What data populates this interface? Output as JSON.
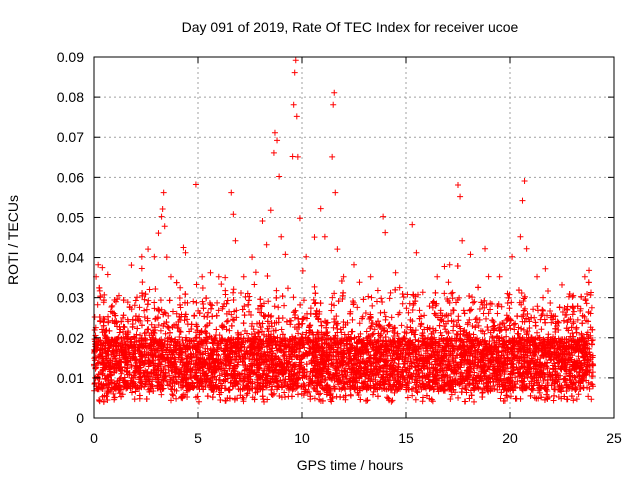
{
  "chart_data": {
    "type": "scatter",
    "title": "Day 091 of 2019, Rate Of TEC Index for receiver ucoe",
    "xlabel": "GPS time / hours",
    "ylabel": "ROTI / TECUs",
    "xlim": [
      0,
      25
    ],
    "ylim": [
      0,
      0.09
    ],
    "x_ticks": [
      0,
      5,
      10,
      15,
      20,
      25
    ],
    "y_ticks": [
      0,
      0.01,
      0.02,
      0.03,
      0.04,
      0.05,
      0.06,
      0.07,
      0.08,
      0.09
    ],
    "x_tick_labels": [
      "0",
      "5",
      "10",
      "15",
      "20",
      "25"
    ],
    "y_tick_labels": [
      "0",
      "0.01",
      "0.02",
      "0.03",
      "0.04",
      "0.05",
      "0.06",
      "0.07",
      "0.08",
      "0.09"
    ],
    "grid": true,
    "marker": "+",
    "marker_color": "#ff0000",
    "series": [
      {
        "points": [
          [
            0.1,
            0.0352
          ],
          [
            0.2,
            0.0382
          ],
          [
            0.3,
            0.0301
          ],
          [
            0.4,
            0.0375
          ],
          [
            1.2,
            0.0305
          ],
          [
            1.8,
            0.0381
          ],
          [
            2.3,
            0.0402
          ],
          [
            2.6,
            0.0421
          ],
          [
            2.9,
            0.0402
          ],
          [
            3.1,
            0.0461
          ],
          [
            3.25,
            0.0502
          ],
          [
            3.3,
            0.0521
          ],
          [
            3.35,
            0.0562
          ],
          [
            3.4,
            0.0478
          ],
          [
            3.5,
            0.0401
          ],
          [
            3.7,
            0.0352
          ],
          [
            4.3,
            0.0425
          ],
          [
            4.4,
            0.0412
          ],
          [
            4.9,
            0.0582
          ],
          [
            5.2,
            0.0352
          ],
          [
            5.6,
            0.0362
          ],
          [
            6.0,
            0.0352
          ],
          [
            6.6,
            0.0562
          ],
          [
            6.7,
            0.0508
          ],
          [
            6.8,
            0.0442
          ],
          [
            7.2,
            0.0352
          ],
          [
            7.6,
            0.0401
          ],
          [
            8.1,
            0.0491
          ],
          [
            8.3,
            0.0432
          ],
          [
            8.5,
            0.0518
          ],
          [
            8.65,
            0.0661
          ],
          [
            8.7,
            0.0711
          ],
          [
            8.8,
            0.0692
          ],
          [
            8.9,
            0.0602
          ],
          [
            9.0,
            0.0452
          ],
          [
            9.2,
            0.0408
          ],
          [
            9.55,
            0.0652
          ],
          [
            9.6,
            0.0781
          ],
          [
            9.65,
            0.0861
          ],
          [
            9.7,
            0.0892
          ],
          [
            9.75,
            0.0752
          ],
          [
            9.8,
            0.0651
          ],
          [
            9.9,
            0.0498
          ],
          [
            10.2,
            0.0402
          ],
          [
            10.6,
            0.0451
          ],
          [
            10.9,
            0.0522
          ],
          [
            11.1,
            0.0452
          ],
          [
            11.45,
            0.0651
          ],
          [
            11.5,
            0.0781
          ],
          [
            11.55,
            0.0811
          ],
          [
            11.6,
            0.0562
          ],
          [
            11.7,
            0.0421
          ],
          [
            12.0,
            0.0352
          ],
          [
            12.5,
            0.0382
          ],
          [
            13.3,
            0.0352
          ],
          [
            13.9,
            0.0502
          ],
          [
            14.0,
            0.0462
          ],
          [
            14.5,
            0.0362
          ],
          [
            15.3,
            0.0482
          ],
          [
            15.5,
            0.0412
          ],
          [
            16.5,
            0.0352
          ],
          [
            17.1,
            0.0382
          ],
          [
            17.5,
            0.0581
          ],
          [
            17.6,
            0.0552
          ],
          [
            17.7,
            0.0442
          ],
          [
            18.1,
            0.0408
          ],
          [
            18.8,
            0.0422
          ],
          [
            19.5,
            0.0352
          ],
          [
            20.1,
            0.0402
          ],
          [
            20.5,
            0.0452
          ],
          [
            20.6,
            0.0542
          ],
          [
            20.7,
            0.0591
          ],
          [
            20.8,
            0.0422
          ],
          [
            21.3,
            0.0352
          ],
          [
            21.7,
            0.0372
          ],
          [
            22.5,
            0.0332
          ],
          [
            23.0,
            0.0302
          ],
          [
            23.6,
            0.0352
          ],
          [
            23.8,
            0.0368
          ]
        ]
      }
    ]
  }
}
